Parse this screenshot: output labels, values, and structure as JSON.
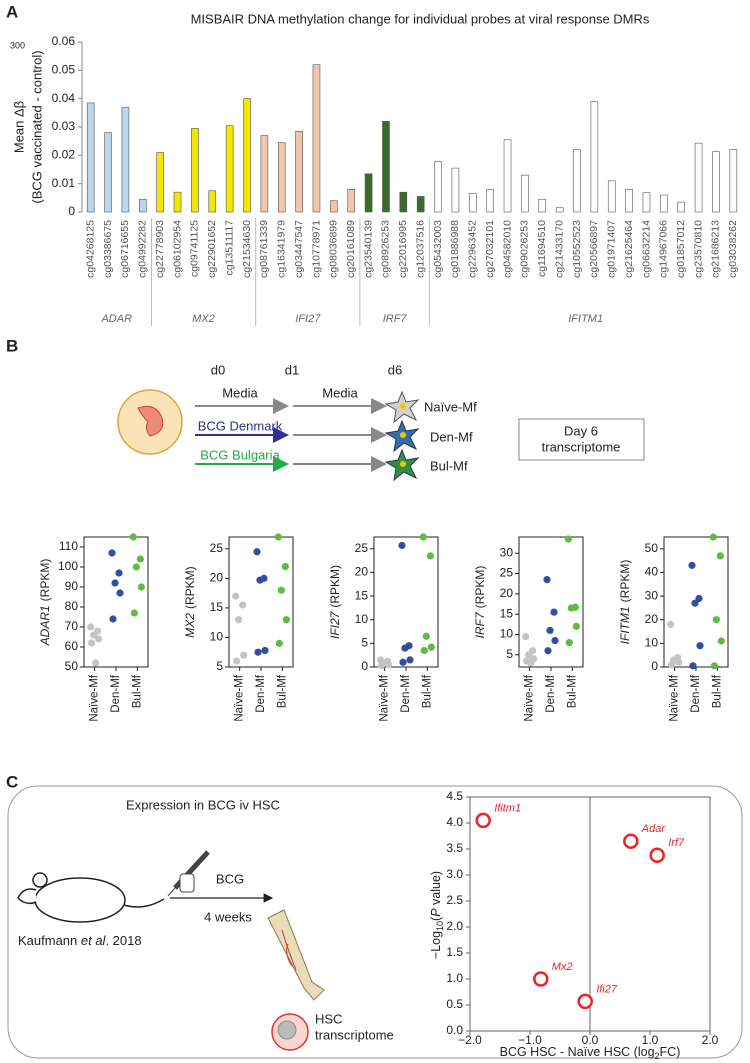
{
  "panel_labels": [
    "A",
    "B",
    "C"
  ],
  "chart_data": [
    {
      "type": "bar",
      "title": "MISBAIR DNA methylation change for individual probes at viral response DMRs",
      "corner_note": "300",
      "y_label": [
        "Mean Δβ",
        "(BCG vaccinated - control)"
      ],
      "ylim": [
        0,
        0.06
      ],
      "yticks": [
        0,
        0.01,
        0.02,
        0.03,
        0.04,
        0.05,
        0.06
      ],
      "series": [
        {
          "name": "ADAR",
          "color": "#bcd6ea",
          "categories": [
            "cg04268125",
            "cg03386675",
            "cg06716655",
            "cg04992282"
          ],
          "values": [
            0.0385,
            0.028,
            0.037,
            0.0045
          ]
        },
        {
          "name": "MX2",
          "color": "#f3e600",
          "categories": [
            "cg22778903",
            "cg06102954",
            "cg09741125",
            "cg22901652",
            "cg13511117",
            "cg21534630"
          ],
          "values": [
            0.021,
            0.007,
            0.0295,
            0.0075,
            0.0305,
            0.04
          ]
        },
        {
          "name": "IFI27",
          "color": "#f2c6ad",
          "categories": [
            "cg08761339",
            "cg16341979",
            "cg03447547",
            "cg10778971",
            "cg08036899",
            "cg20161089"
          ],
          "values": [
            0.027,
            0.0245,
            0.0285,
            0.052,
            0.004,
            0.008
          ]
        },
        {
          "name": "IRF7",
          "color": "#3b6b2b",
          "categories": [
            "cg23540139",
            "cg08926253",
            "cg22016995",
            "cg12037516"
          ],
          "values": [
            0.0135,
            0.032,
            0.007,
            0.0055
          ]
        },
        {
          "name": "IFITM1",
          "color": "#ffffff",
          "categories": [
            "cg05432003",
            "cg01886988",
            "cg22963452",
            "cg27032101",
            "cg04582010",
            "cg09026253",
            "cg11694510",
            "cg21433170",
            "cg10552523",
            "cg20566897",
            "cg01971407",
            "cg21625464",
            "cg06632214",
            "cg14967066",
            "cg01857012",
            "cg23570810",
            "cg21686213",
            "cg03038262"
          ],
          "values": [
            0.0178,
            0.0155,
            0.0065,
            0.008,
            0.0255,
            0.013,
            0.0045,
            0.0015,
            0.022,
            0.039,
            0.011,
            0.008,
            0.0068,
            0.006,
            0.0035,
            0.0243,
            0.0213,
            0.022
          ]
        }
      ]
    },
    {
      "type": "strip",
      "y_label": {
        "gene": "ADAR1",
        "unit": "(RPKM)"
      },
      "categories": [
        "Naïve-Mf",
        "Den-Mf",
        "Bul-Mf"
      ],
      "colors": [
        "#c4c4c4",
        "#2f4fa0",
        "#5dbb46"
      ],
      "ylim": [
        50,
        115
      ],
      "yticks": [
        50,
        60,
        70,
        80,
        90,
        100,
        110
      ],
      "values": [
        [
          70,
          68,
          66,
          64,
          62,
          52
        ],
        [
          107,
          97,
          92,
          87,
          74
        ],
        [
          115,
          104,
          100,
          90,
          77
        ]
      ]
    },
    {
      "type": "strip",
      "y_label": {
        "gene": "MX2",
        "unit": "(RPKM)"
      },
      "categories": [
        "Naïve-Mf",
        "Den-Mf",
        "Bul-Mf"
      ],
      "colors": [
        "#c4c4c4",
        "#2f4fa0",
        "#5dbb46"
      ],
      "ylim": [
        5,
        27
      ],
      "yticks": [
        5,
        10,
        15,
        20,
        25
      ],
      "values": [
        [
          17,
          15.5,
          13,
          7,
          6
        ],
        [
          24.5,
          20,
          19.7,
          7.8,
          7.5
        ],
        [
          27,
          22,
          18,
          13,
          9
        ]
      ]
    },
    {
      "type": "strip",
      "y_label": {
        "gene": "IFI27",
        "unit": "(RPKM)"
      },
      "categories": [
        "Naïve-Mf",
        "Den-Mf",
        "Bul-Mf"
      ],
      "colors": [
        "#c4c4c4",
        "#2f4fa0",
        "#5dbb46"
      ],
      "ylim": [
        0,
        27.5
      ],
      "yticks": [
        0,
        5,
        10,
        15,
        20,
        25
      ],
      "values": [
        [
          1.5,
          1.2,
          0.8,
          0.5,
          0.3
        ],
        [
          25.7,
          4.5,
          4,
          1.5,
          1
        ],
        [
          27.5,
          23.5,
          6.5,
          4.2,
          3.5
        ]
      ]
    },
    {
      "type": "strip",
      "y_label": {
        "gene": "IRF7",
        "unit": "(RPKM)"
      },
      "categories": [
        "Naïve-Mf",
        "Den-Mf",
        "Bul-Mf"
      ],
      "colors": [
        "#c4c4c4",
        "#2f4fa0",
        "#5dbb46"
      ],
      "ylim": [
        2,
        34
      ],
      "yticks": [
        5,
        10,
        15,
        20,
        25,
        30
      ],
      "values": [
        [
          9.5,
          6,
          5,
          4,
          3.5,
          3
        ],
        [
          23.5,
          15.5,
          11,
          8.5,
          6
        ],
        [
          33.5,
          16.7,
          16.5,
          12,
          8
        ]
      ]
    },
    {
      "type": "strip",
      "y_label": {
        "gene": "IFITM1",
        "unit": "(RPKM)"
      },
      "categories": [
        "Naïve-Mf",
        "Den-Mf",
        "Bul-Mf"
      ],
      "colors": [
        "#c4c4c4",
        "#2f4fa0",
        "#5dbb46"
      ],
      "ylim": [
        0,
        55
      ],
      "yticks": [
        0,
        10,
        20,
        30,
        40,
        50
      ],
      "values": [
        [
          18,
          4,
          3,
          2,
          1
        ],
        [
          43,
          29,
          27,
          9,
          0.5
        ],
        [
          55,
          47,
          20,
          11,
          0.5
        ]
      ]
    },
    {
      "type": "scatter",
      "x_label": [
        "BCG HSC - Naïve HSC (log",
        "2",
        "FC)"
      ],
      "y_label": [
        "−Log",
        "10",
        "(",
        "P",
        " value)"
      ],
      "color": "#e8262a",
      "vline": 0,
      "xlim": [
        -2,
        2
      ],
      "xticks": [
        {
          "value": -2,
          "label": "−2.0"
        },
        {
          "value": -1,
          "label": "−1.0"
        },
        {
          "value": 0,
          "label": "0.0"
        },
        {
          "value": 1,
          "label": "1.0"
        },
        {
          "value": 2,
          "label": "2.0"
        }
      ],
      "ylim": [
        0,
        4.5
      ],
      "yticks": [
        {
          "value": 0,
          "label": "0.0"
        },
        0.5,
        {
          "value": 1,
          "label": "1.0"
        },
        1.5,
        {
          "value": 2,
          "label": "2.0"
        },
        2.5,
        {
          "value": 3,
          "label": "3.0"
        },
        3.5,
        {
          "value": 4,
          "label": "4.0"
        },
        4.5
      ],
      "labels": [
        "Ifitm1",
        "Adar",
        "Irf7",
        "Mx2",
        "Ifi27"
      ],
      "x": [
        -1.78,
        0.68,
        1.12,
        -0.82,
        -0.08
      ],
      "y": [
        4.05,
        3.65,
        3.38,
        1.0,
        0.57
      ]
    }
  ],
  "diagram_b": {
    "days": [
      "d0",
      "d1",
      "d6"
    ],
    "media": [
      "Media",
      "Media"
    ],
    "treatments": [
      "BCG Denmark",
      "BCG Bulgaria"
    ],
    "cells": [
      "Naïve-Mf",
      "Den-Mf",
      "Bul-Mf"
    ],
    "box": [
      "Day 6",
      "transcriptome"
    ]
  },
  "diagram_c": {
    "title": "Expression in BCG iv HSC",
    "arrow_top": "BCG",
    "arrow_bottom": "4 weeks",
    "citation": [
      "Kaufmann ",
      "et al",
      ". 2018"
    ],
    "cell_label": [
      "HSC",
      "transcriptome"
    ]
  }
}
